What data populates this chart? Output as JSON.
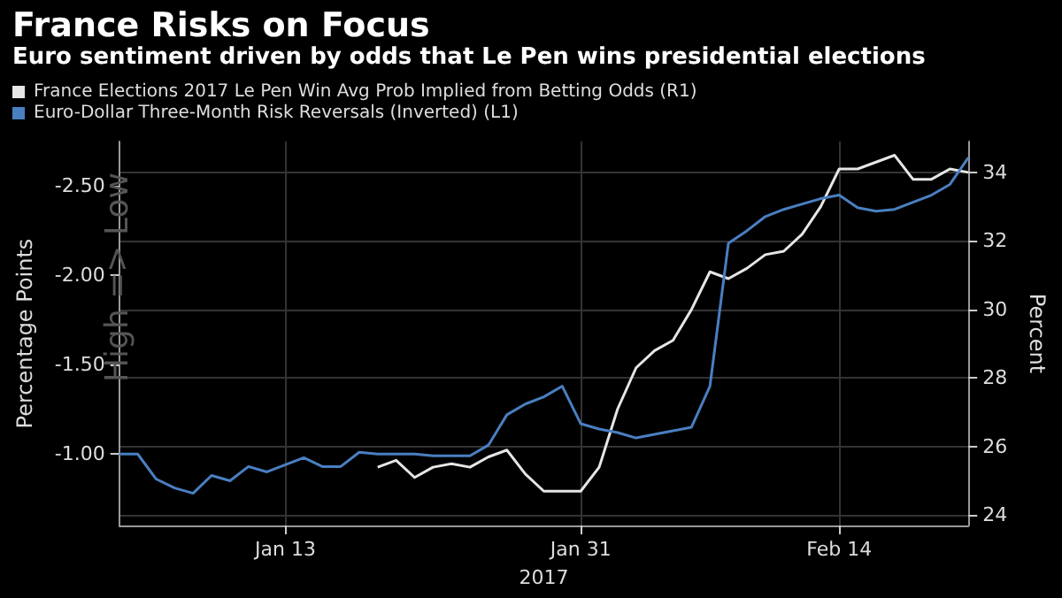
{
  "chart_data": {
    "type": "line",
    "title": "France Risks on Focus",
    "subtitle": "Euro sentiment driven by odds that Le Pen wins presidential elections",
    "xlabel": "2017",
    "ylabel": "Percentage Points",
    "y2label": "Percent",
    "annotations": [
      "High => Low"
    ],
    "categories": [
      null,
      null,
      null,
      null,
      null,
      null,
      null,
      null,
      null,
      "Jan 13",
      null,
      null,
      null,
      null,
      null,
      null,
      null,
      null,
      null,
      null,
      null,
      null,
      null,
      null,
      null,
      "Jan 31",
      null,
      null,
      null,
      null,
      null,
      null,
      null,
      null,
      null,
      null,
      null,
      null,
      null,
      "Feb 14",
      null,
      null,
      null,
      null,
      null,
      null,
      null
    ],
    "series": [
      {
        "name": "France Elections 2017 Le Pen Win Avg Prob Implied from Betting Odds (R1)",
        "color": "#e6e6e6",
        "axis": "y2",
        "values": [
          null,
          null,
          null,
          null,
          null,
          null,
          null,
          null,
          null,
          null,
          null,
          null,
          null,
          null,
          25.4,
          25.6,
          25.1,
          25.4,
          25.5,
          25.4,
          25.7,
          25.9,
          25.2,
          24.7,
          24.7,
          24.7,
          25.4,
          27.1,
          28.3,
          28.8,
          29.1,
          30.0,
          31.1,
          30.9,
          31.2,
          31.6,
          31.7,
          32.2,
          33.0,
          34.1,
          34.1,
          34.3,
          34.5,
          33.8,
          33.8,
          34.1,
          34.0
        ]
      },
      {
        "name": "Euro-Dollar Three-Month Risk Reversals (Inverted) (L1)",
        "color": "#4a7fc1",
        "axis": "y",
        "values": [
          -1.0,
          -1.0,
          -0.86,
          -0.81,
          -0.78,
          -0.88,
          -0.85,
          -0.93,
          -0.9,
          -0.94,
          -0.98,
          -0.93,
          -0.93,
          -1.01,
          -1.0,
          -1.0,
          -1.0,
          -0.99,
          -0.99,
          -0.99,
          -1.05,
          -1.22,
          -1.28,
          -1.32,
          -1.38,
          -1.17,
          -1.14,
          -1.12,
          -1.09,
          -1.11,
          -1.13,
          -1.15,
          -1.38,
          -2.18,
          -2.25,
          -2.33,
          -2.37,
          -2.4,
          -2.43,
          -2.45,
          -2.38,
          -2.36,
          -2.37,
          -2.41,
          -2.45,
          -2.51,
          -2.66
        ]
      }
    ],
    "ylim": [
      -0.6,
      -2.75
    ],
    "yticks": [
      {
        "value": -1,
        "label": "-1.00"
      },
      {
        "value": -1.5,
        "label": "-1.50"
      },
      {
        "value": -2,
        "label": "-2.00"
      },
      {
        "value": -2.5,
        "label": "-2.50"
      }
    ],
    "y2lim": [
      23.7,
      34.9
    ],
    "y2ticks": [
      24,
      26,
      28,
      30,
      32,
      34
    ],
    "grid": true,
    "legend": "top left",
    "line_style": "solid"
  }
}
